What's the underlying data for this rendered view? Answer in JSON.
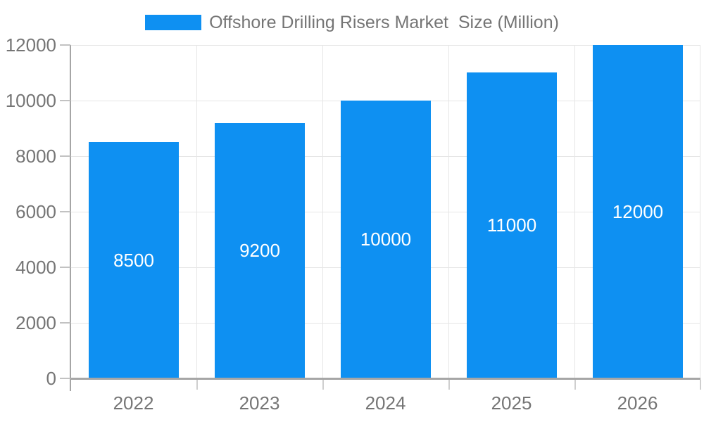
{
  "legend": {
    "label": "Offshore Drilling Risers Market  Size (Million)"
  },
  "colors": {
    "bar": "#0e90f2",
    "axis": "#a6a6a6",
    "grid": "#e6e6e6",
    "tick": "#c2c2c2",
    "label_text": "#757575",
    "bar_label_text": "#ffffff"
  },
  "chart_data": {
    "type": "bar",
    "title": "",
    "series_name": "Offshore Drilling Risers Market  Size (Million)",
    "categories": [
      "2022",
      "2023",
      "2024",
      "2025",
      "2026"
    ],
    "values": [
      8500,
      9200,
      10000,
      11000,
      12000
    ],
    "bar_labels": [
      8500,
      9200,
      10000,
      11000,
      12000
    ],
    "xlabel": "",
    "ylabel": "",
    "ylim": [
      0,
      12000
    ],
    "ytick_step": 2000,
    "yticks": [
      0,
      2000,
      4000,
      6000,
      8000,
      10000,
      12000
    ],
    "grid": true,
    "legend_position": "top"
  }
}
